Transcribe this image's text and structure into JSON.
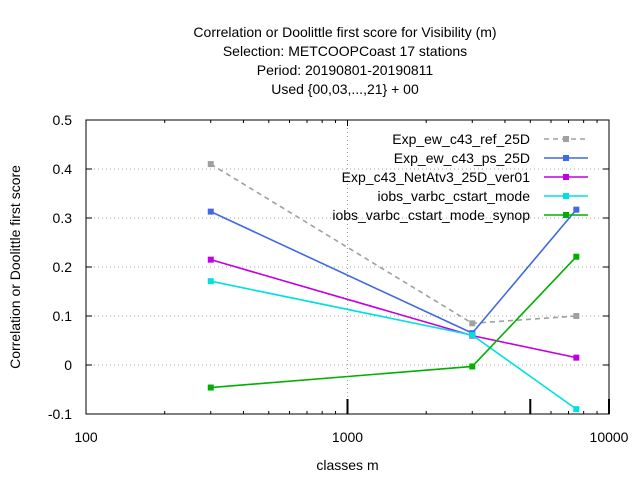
{
  "chart_data": {
    "type": "line",
    "title_lines": [
      "Correlation or Doolittle first score  for Visibility (m)",
      "Selection: METCOOPCoast     17 stations",
      "Period: 20190801-20190811",
      "Used {00,03,...,21} + 00"
    ],
    "xlabel": "classes m",
    "ylabel": "Correlation or Doolittle first score",
    "xscale": "log",
    "xlim": [
      100,
      10000
    ],
    "ylim": [
      -0.1,
      0.5
    ],
    "xticks": [
      100,
      1000,
      10000
    ],
    "xtick_labels": [
      "100",
      "1000",
      "10000"
    ],
    "yticks": [
      -0.1,
      0,
      0.1,
      0.2,
      0.3,
      0.4,
      0.5
    ],
    "ytick_labels": [
      "-0.1",
      "0",
      "0.1",
      "0.2",
      "0.3",
      "0.4",
      "0.5"
    ],
    "grid": true,
    "legend_position": "top-right",
    "x": [
      300,
      3000,
      7500
    ],
    "series": [
      {
        "name": "Exp_ew_c43_ref_25D",
        "color": "#a0a0a0",
        "dashed": true,
        "values": [
          0.41,
          0.085,
          0.1
        ]
      },
      {
        "name": "Exp_ew_c43_ps_25D",
        "color": "#4169e1",
        "dashed": false,
        "values": [
          0.313,
          0.065,
          0.317
        ]
      },
      {
        "name": "Exp_c43_NetAtv3_25D_ver01",
        "color": "#c000e0",
        "dashed": false,
        "values": [
          0.215,
          0.06,
          0.015
        ]
      },
      {
        "name": "iobs_varbc_cstart_mode",
        "color": "#00e0e0",
        "dashed": false,
        "values": [
          0.171,
          0.061,
          -0.09
        ]
      },
      {
        "name": "iobs_varbc_cstart_mode_synop",
        "color": "#00b000",
        "dashed": false,
        "values": [
          -0.046,
          -0.003,
          0.221
        ]
      }
    ],
    "markers_on_axis": [
      1000,
      5000,
      10000
    ]
  }
}
